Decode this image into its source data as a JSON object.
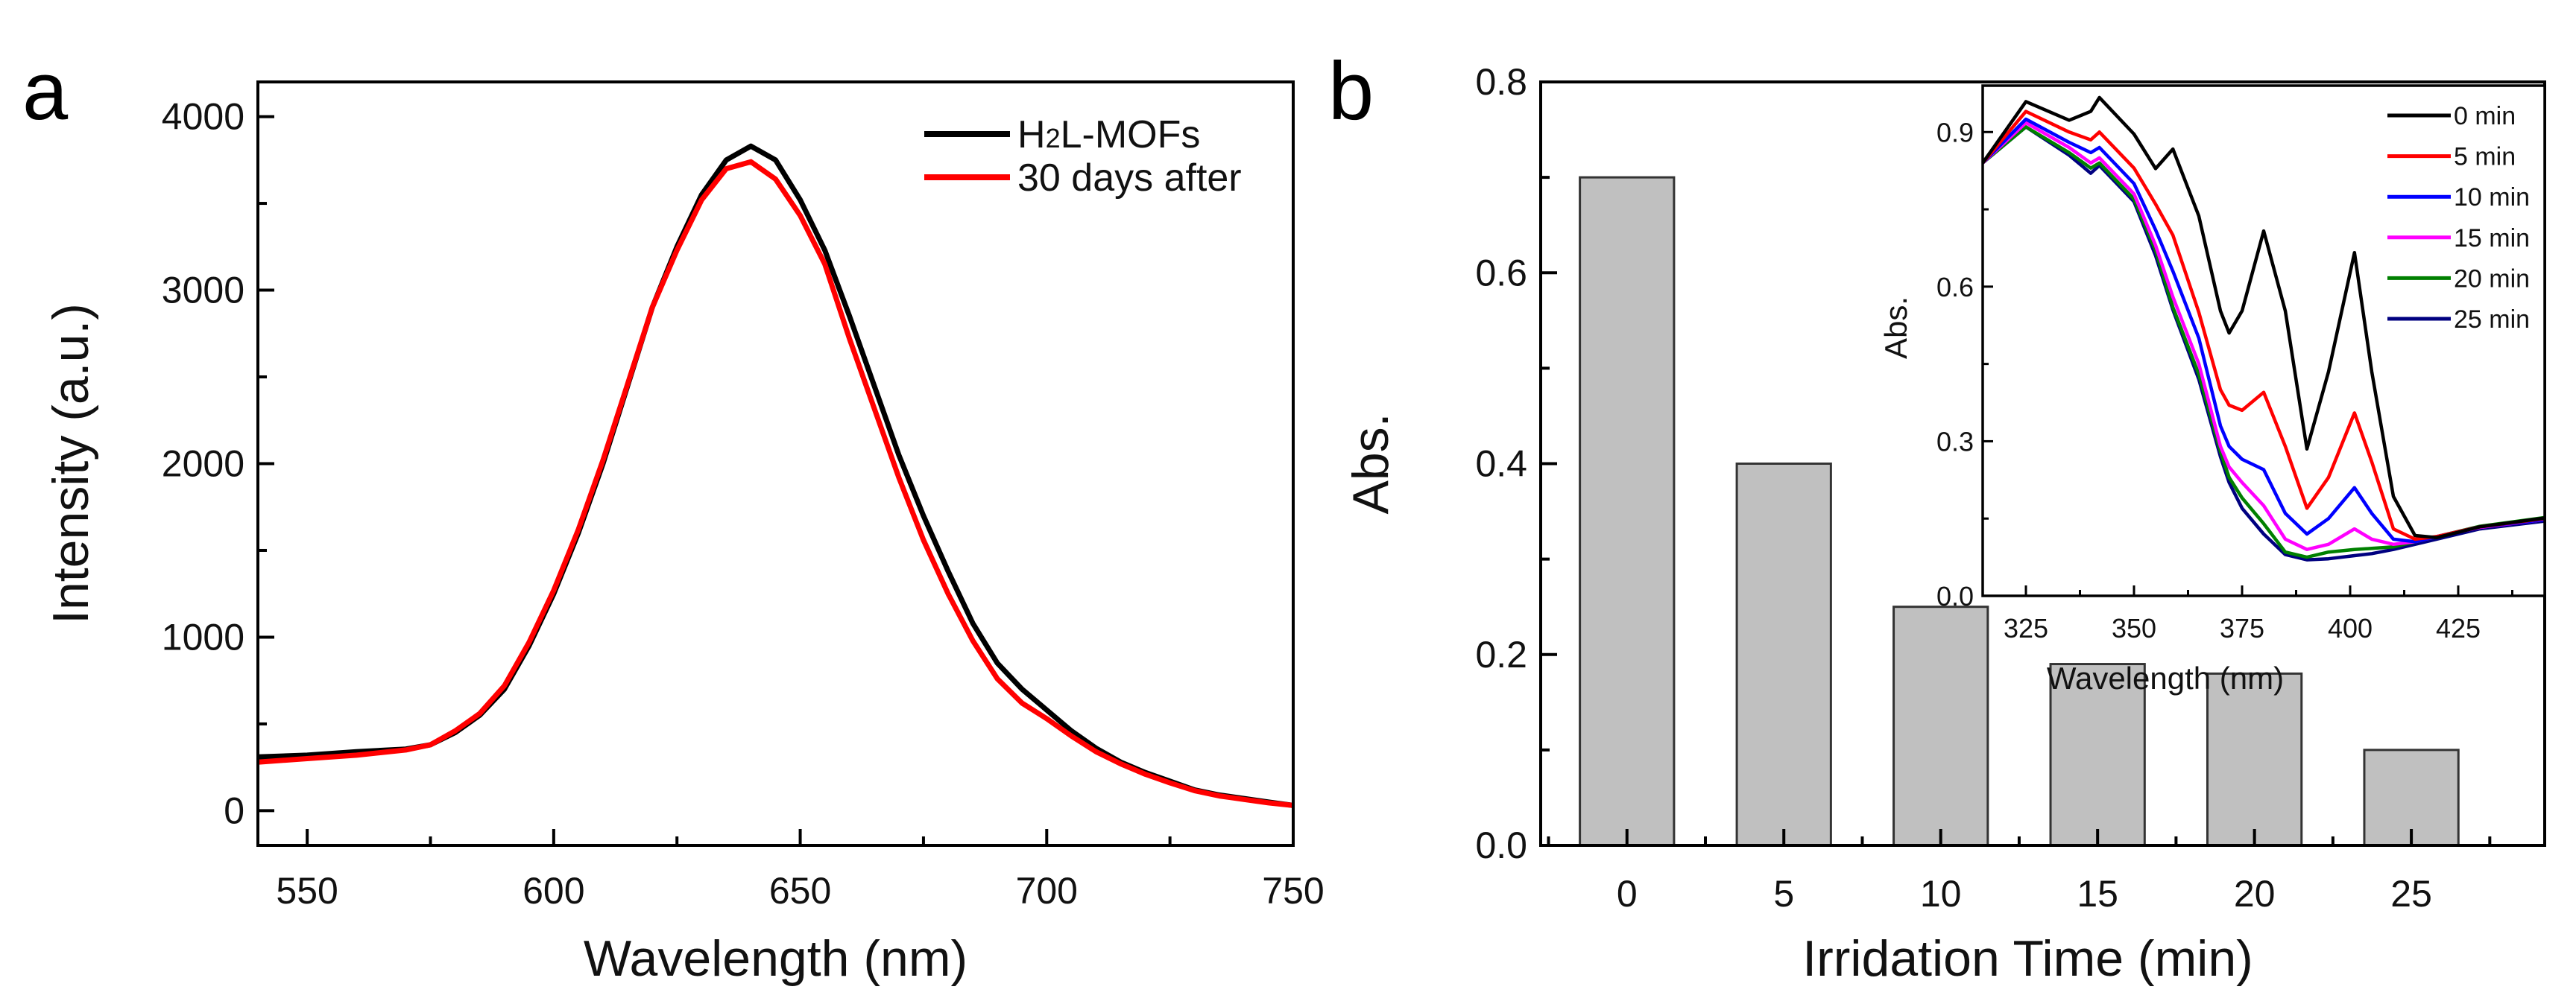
{
  "chart_data": [
    {
      "panel_label": "a",
      "type": "line",
      "xlabel": "Wavelength (nm)",
      "ylabel": "Intensity (a.u.)",
      "xlim": [
        540,
        750
      ],
      "ylim": [
        -200,
        4200
      ],
      "xticks": [
        550,
        600,
        650,
        700,
        750
      ],
      "yticks": [
        0,
        1000,
        2000,
        3000,
        4000
      ],
      "grid": false,
      "legend_position": "top-right",
      "series": [
        {
          "name": "H2L-MOFs",
          "name_main": "H",
          "name_sub": "2",
          "name_rest": "L-MOFs",
          "color": "#000000",
          "x": [
            540,
            550,
            560,
            570,
            575,
            580,
            585,
            590,
            595,
            600,
            605,
            610,
            615,
            620,
            625,
            630,
            635,
            640,
            645,
            650,
            655,
            660,
            665,
            670,
            675,
            680,
            685,
            690,
            695,
            700,
            705,
            710,
            715,
            720,
            725,
            730,
            735,
            740,
            745,
            750
          ],
          "y": [
            310,
            320,
            340,
            355,
            380,
            450,
            550,
            700,
            950,
            1250,
            1600,
            2000,
            2450,
            2900,
            3250,
            3550,
            3750,
            3830,
            3750,
            3520,
            3230,
            2850,
            2450,
            2050,
            1700,
            1380,
            1080,
            850,
            700,
            580,
            460,
            360,
            280,
            220,
            170,
            120,
            90,
            70,
            50,
            30
          ]
        },
        {
          "name": "30 days after",
          "color": "#ff0000",
          "x": [
            540,
            550,
            560,
            570,
            575,
            580,
            585,
            590,
            595,
            600,
            605,
            610,
            615,
            620,
            625,
            630,
            635,
            640,
            645,
            650,
            655,
            660,
            665,
            670,
            675,
            680,
            685,
            690,
            695,
            700,
            705,
            710,
            715,
            720,
            725,
            730,
            735,
            740,
            745,
            750
          ],
          "y": [
            280,
            300,
            320,
            350,
            380,
            460,
            560,
            720,
            970,
            1270,
            1620,
            2020,
            2460,
            2900,
            3230,
            3520,
            3700,
            3740,
            3640,
            3430,
            3150,
            2720,
            2320,
            1920,
            1560,
            1250,
            980,
            760,
            620,
            530,
            430,
            340,
            270,
            210,
            160,
            115,
            85,
            65,
            45,
            30
          ]
        }
      ]
    },
    {
      "panel_label": "b",
      "type": "bar",
      "xlabel": "Irridation Time (min)",
      "ylabel": "Abs.",
      "categories": [
        0,
        5,
        10,
        15,
        20,
        25
      ],
      "values": [
        0.7,
        0.4,
        0.25,
        0.19,
        0.18,
        0.1
      ],
      "bar_color": "#c0c0c0",
      "xlim": [
        -2.75,
        29.25
      ],
      "ylim": [
        0,
        0.8
      ],
      "yticks": [
        "0.0",
        "0.2",
        "0.4",
        "0.6",
        "0.8"
      ],
      "xticks": [
        "0",
        "5",
        "10",
        "15",
        "20",
        "25"
      ],
      "grid": false,
      "inset": {
        "type": "line",
        "xlabel": "Wavelength (nm)",
        "ylabel": "Abs.",
        "xlim": [
          315,
          445
        ],
        "ylim": [
          0,
          0.99
        ],
        "xticks": [
          325,
          350,
          375,
          400,
          425
        ],
        "yticks": [
          "0.0",
          "0.3",
          "0.6",
          "0.9"
        ],
        "legend_position": "top-right",
        "x": [
          315,
          325,
          335,
          340,
          342,
          350,
          355,
          359,
          365,
          370,
          372,
          375,
          380,
          385,
          390,
          395,
          401,
          405,
          410,
          415,
          420,
          430,
          445
        ],
        "series": [
          {
            "name": "0 min",
            "color": "#000000",
            "y": [
              0.84,
              0.959,
              0.923,
              0.94,
              0.967,
              0.896,
              0.829,
              0.867,
              0.737,
              0.553,
              0.51,
              0.553,
              0.708,
              0.553,
              0.285,
              0.435,
              0.666,
              0.435,
              0.193,
              0.117,
              0.113,
              0.134,
              0.151
            ]
          },
          {
            "name": "5 min",
            "color": "#ff0000",
            "y": [
              0.84,
              0.94,
              0.9,
              0.885,
              0.9,
              0.83,
              0.76,
              0.7,
              0.55,
              0.4,
              0.37,
              0.36,
              0.395,
              0.29,
              0.17,
              0.23,
              0.355,
              0.26,
              0.13,
              0.11,
              0.115,
              0.134,
              0.15
            ]
          },
          {
            "name": "10 min",
            "color": "#0000ff",
            "y": [
              0.84,
              0.925,
              0.88,
              0.86,
              0.87,
              0.8,
              0.71,
              0.63,
              0.5,
              0.33,
              0.29,
              0.265,
              0.245,
              0.16,
              0.12,
              0.15,
              0.21,
              0.16,
              0.11,
              0.105,
              0.115,
              0.134,
              0.148
            ]
          },
          {
            "name": "15 min",
            "color": "#ff00ff",
            "y": [
              0.84,
              0.918,
              0.87,
              0.84,
              0.85,
              0.78,
              0.68,
              0.58,
              0.45,
              0.29,
              0.25,
              0.22,
              0.175,
              0.11,
              0.09,
              0.1,
              0.13,
              0.11,
              0.1,
              0.105,
              0.115,
              0.133,
              0.148
            ]
          },
          {
            "name": "20 min",
            "color": "#008000",
            "y": [
              0.84,
              0.91,
              0.86,
              0.83,
              0.84,
              0.77,
              0.67,
              0.56,
              0.43,
              0.28,
              0.23,
              0.19,
              0.14,
              0.085,
              0.075,
              0.085,
              0.09,
              0.092,
              0.095,
              0.105,
              0.115,
              0.135,
              0.152
            ]
          },
          {
            "name": "25 min",
            "color": "#000080",
            "y": [
              0.84,
              0.91,
              0.855,
              0.82,
              0.835,
              0.765,
              0.66,
              0.555,
              0.42,
              0.27,
              0.22,
              0.17,
              0.12,
              0.08,
              0.07,
              0.072,
              0.078,
              0.082,
              0.09,
              0.1,
              0.11,
              0.13,
              0.145
            ]
          }
        ]
      }
    }
  ]
}
